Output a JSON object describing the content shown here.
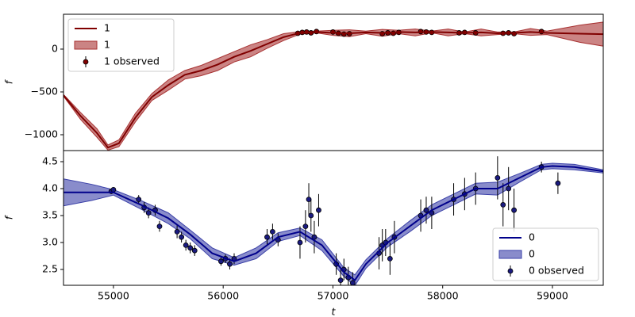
{
  "chart_data": [
    {
      "type": "line",
      "ylabel": "f",
      "legend": "upper left",
      "x": [
        54545,
        54700,
        54850,
        54950,
        55050,
        55200,
        55350,
        55500,
        55650,
        55800,
        55950,
        56100,
        56250,
        56400,
        56550,
        56700,
        56850,
        57000,
        57150,
        57300,
        57450,
        57600,
        57750,
        57900,
        58050,
        58200,
        58350,
        58500,
        58650,
        58800,
        58950,
        59100,
        59250,
        59463
      ],
      "series": [
        {
          "name": "1",
          "color": "#800000",
          "values": [
            -540,
            -780,
            -980,
            -1150,
            -1100,
            -800,
            -560,
            -420,
            -300,
            -250,
            -180,
            -90,
            -20,
            60,
            140,
            190,
            200,
            190,
            185,
            195,
            190,
            200,
            195,
            200,
            195,
            190,
            195,
            185,
            190,
            200,
            190,
            185,
            180,
            175
          ]
        }
      ],
      "band": {
        "name": "1",
        "color": "#a83232",
        "lower": [
          -550,
          -820,
          -1030,
          -1180,
          -1140,
          -850,
          -600,
          -480,
          -350,
          -310,
          -250,
          -150,
          -90,
          10,
          100,
          175,
          190,
          160,
          145,
          180,
          150,
          180,
          155,
          190,
          155,
          180,
          155,
          170,
          180,
          160,
          170,
          125,
          80,
          35
        ],
        "upper": [
          -530,
          -740,
          -930,
          -1120,
          -1060,
          -750,
          -520,
          -360,
          -250,
          -190,
          -110,
          -30,
          50,
          110,
          180,
          205,
          210,
          220,
          225,
          210,
          230,
          220,
          235,
          210,
          235,
          200,
          235,
          200,
          200,
          240,
          210,
          245,
          280,
          315
        ]
      },
      "observed": {
        "name": "1 observed",
        "color": "#800000",
        "x": [
          56680,
          56720,
          56760,
          56800,
          56850,
          57000,
          57050,
          57100,
          57150,
          57450,
          57500,
          57550,
          57600,
          57800,
          57850,
          57900,
          58150,
          58200,
          58300,
          58550,
          58600,
          58650,
          58900
        ],
        "values": [
          185,
          195,
          200,
          190,
          205,
          200,
          185,
          175,
          180,
          180,
          190,
          185,
          195,
          205,
          200,
          195,
          190,
          195,
          190,
          185,
          190,
          180,
          205
        ],
        "errors": [
          15,
          15,
          15,
          15,
          15,
          15,
          15,
          15,
          15,
          15,
          15,
          15,
          15,
          15,
          15,
          15,
          15,
          15,
          15,
          15,
          15,
          15,
          15
        ]
      },
      "xlim": [
        54545,
        59463
      ],
      "ylim": [
        -1185,
        407
      ],
      "yticks": [
        {
          "value": -1000,
          "label": "−1000"
        },
        {
          "value": -500,
          "label": "−500"
        },
        0
      ]
    },
    {
      "type": "line",
      "ylabel": "f",
      "xlabel": "t",
      "legend": "lower right",
      "x": [
        54545,
        54800,
        55000,
        55250,
        55500,
        55700,
        55900,
        56100,
        56300,
        56500,
        56700,
        56900,
        57100,
        57200,
        57300,
        57500,
        57700,
        57900,
        58100,
        58300,
        58500,
        58700,
        58900,
        59000,
        59200,
        59463
      ],
      "series": [
        {
          "name": "0",
          "color": "#00008b",
          "values": [
            3.93,
            3.93,
            3.93,
            3.7,
            3.45,
            3.15,
            2.8,
            2.65,
            2.8,
            3.1,
            3.2,
            2.95,
            2.45,
            2.3,
            2.6,
            3.0,
            3.3,
            3.6,
            3.8,
            4.0,
            4.0,
            4.2,
            4.4,
            4.42,
            4.4,
            4.32
          ]
        }
      ],
      "band": {
        "name": "0",
        "color": "#3a40a8",
        "lower": [
          3.68,
          3.78,
          3.88,
          3.62,
          3.35,
          3.07,
          2.7,
          2.58,
          2.7,
          3.02,
          3.13,
          2.85,
          2.37,
          2.2,
          2.52,
          2.92,
          3.2,
          3.5,
          3.7,
          3.9,
          3.88,
          4.12,
          4.35,
          4.37,
          4.35,
          4.29
        ],
        "upper": [
          4.18,
          4.08,
          3.98,
          3.78,
          3.55,
          3.23,
          2.9,
          2.72,
          2.9,
          3.18,
          3.27,
          3.05,
          2.53,
          2.4,
          2.68,
          3.08,
          3.4,
          3.7,
          3.9,
          4.1,
          4.12,
          4.28,
          4.45,
          4.47,
          4.45,
          4.35
        ]
      },
      "observed": {
        "name": "0 observed",
        "color": "#1a1a80",
        "x": [
          54980,
          55000,
          55230,
          55280,
          55320,
          55380,
          55420,
          55580,
          55620,
          55660,
          55700,
          55740,
          55980,
          56020,
          56060,
          56100,
          56400,
          56450,
          56500,
          56700,
          56750,
          56780,
          56800,
          56830,
          56870,
          57030,
          57070,
          57100,
          57140,
          57180,
          57420,
          57450,
          57480,
          57520,
          57560,
          57800,
          57850,
          57900,
          58100,
          58200,
          58300,
          58500,
          58550,
          58600,
          58650,
          58900,
          59050
        ],
        "values": [
          3.95,
          3.98,
          3.8,
          3.65,
          3.55,
          3.6,
          3.3,
          3.2,
          3.1,
          2.95,
          2.9,
          2.85,
          2.65,
          2.7,
          2.6,
          2.7,
          3.1,
          3.2,
          3.05,
          3.0,
          3.3,
          3.8,
          3.5,
          3.1,
          3.6,
          2.6,
          2.3,
          2.5,
          2.35,
          2.25,
          2.8,
          2.95,
          3.0,
          2.7,
          3.1,
          3.5,
          3.6,
          3.55,
          3.8,
          3.9,
          4.0,
          4.2,
          3.7,
          4.0,
          3.6,
          4.4,
          4.1
        ],
        "errors": [
          0.05,
          0.05,
          0.08,
          0.1,
          0.1,
          0.1,
          0.1,
          0.12,
          0.1,
          0.1,
          0.1,
          0.1,
          0.08,
          0.08,
          0.1,
          0.1,
          0.15,
          0.15,
          0.12,
          0.3,
          0.3,
          0.3,
          0.3,
          0.3,
          0.3,
          0.2,
          0.2,
          0.2,
          0.2,
          0.2,
          0.3,
          0.3,
          0.25,
          0.3,
          0.3,
          0.3,
          0.25,
          0.3,
          0.3,
          0.3,
          0.3,
          0.4,
          0.4,
          0.4,
          0.4,
          0.1,
          0.2
        ]
      },
      "xlim": [
        54545,
        59463
      ],
      "ylim": [
        2.206,
        4.706
      ],
      "xticks": [
        55000,
        56000,
        57000,
        58000,
        59000
      ],
      "yticks": [
        2.5,
        {
          "value": 3,
          "label": "3.0"
        },
        3.5,
        {
          "value": 4,
          "label": "4.0"
        },
        4.5
      ]
    }
  ]
}
